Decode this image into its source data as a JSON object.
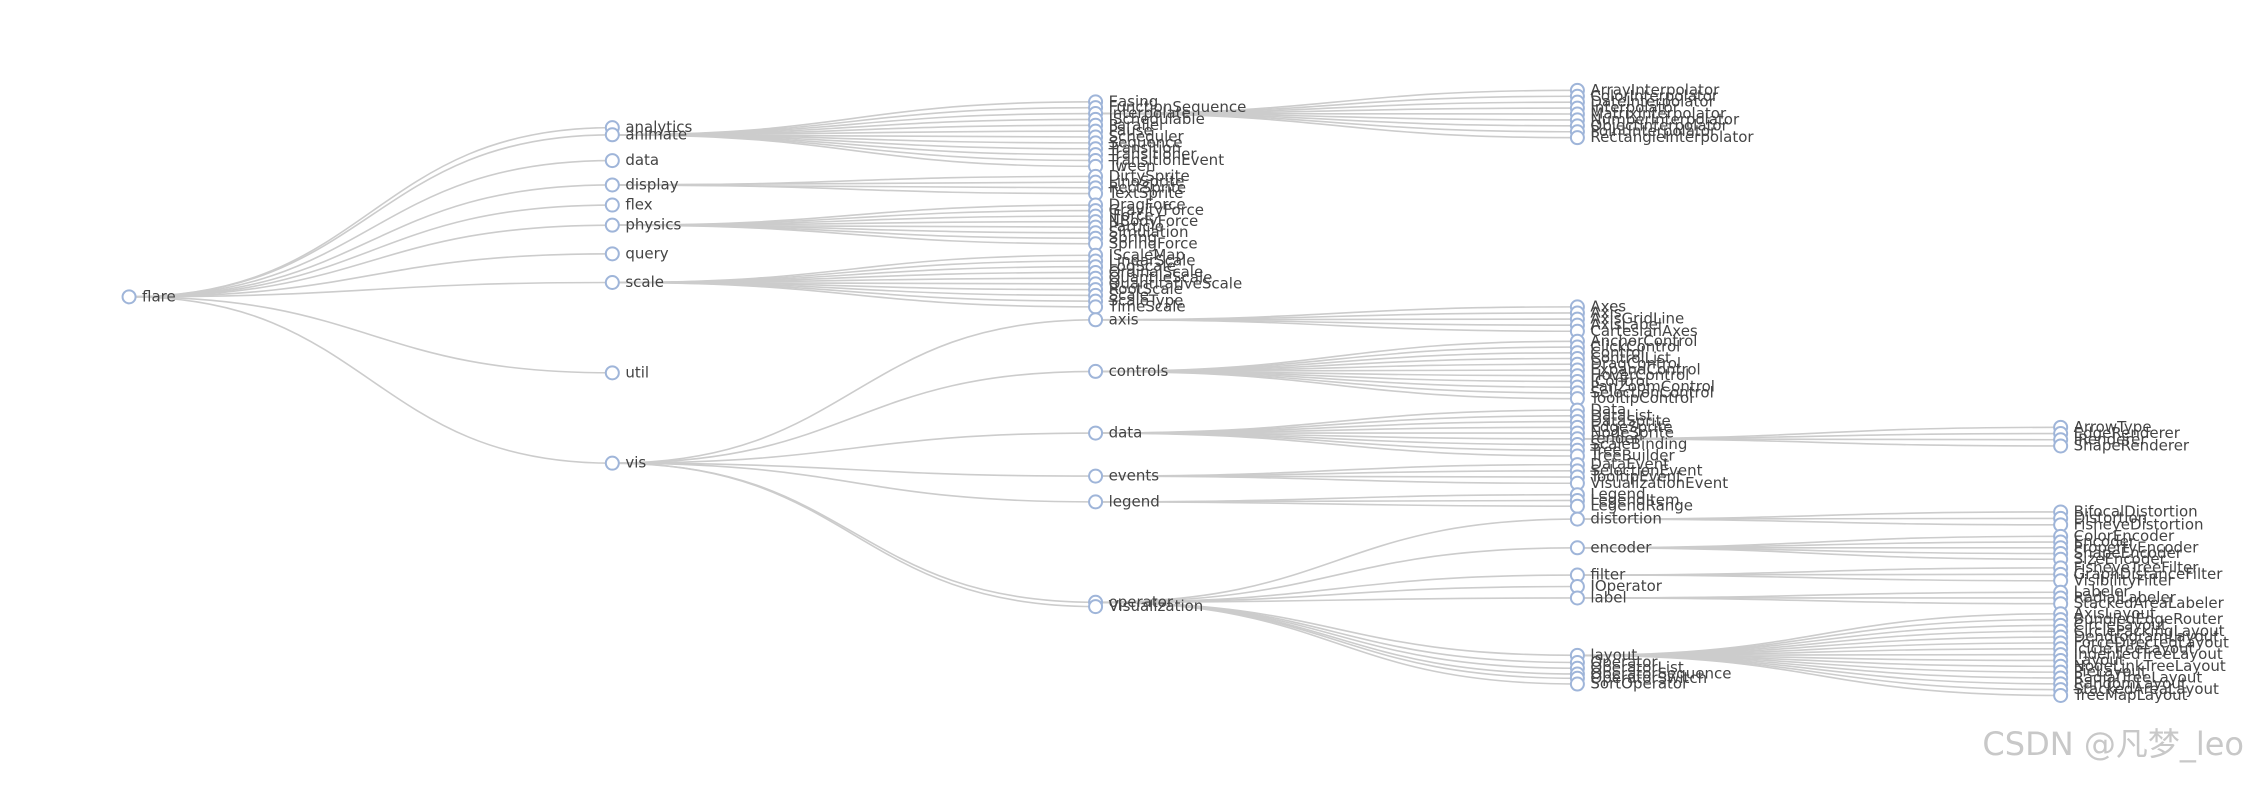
{
  "tree": {
    "name": "flare",
    "children": [
      {
        "name": "analytics"
      },
      {
        "name": "animate",
        "children": [
          {
            "name": "Easing"
          },
          {
            "name": "FunctionSequence"
          },
          {
            "name": "interpolate",
            "children": [
              {
                "name": "ArrayInterpolator"
              },
              {
                "name": "ColorInterpolator"
              },
              {
                "name": "DateInterpolator"
              },
              {
                "name": "Interpolator"
              },
              {
                "name": "MatrixInterpolator"
              },
              {
                "name": "NumberInterpolator"
              },
              {
                "name": "ObjectInterpolator"
              },
              {
                "name": "PointInterpolator"
              },
              {
                "name": "RectangleInterpolator"
              }
            ]
          },
          {
            "name": "ISchedulable"
          },
          {
            "name": "Parallel"
          },
          {
            "name": "Pause"
          },
          {
            "name": "Scheduler"
          },
          {
            "name": "Sequence"
          },
          {
            "name": "Transition"
          },
          {
            "name": "Transitioner"
          },
          {
            "name": "TransitionEvent"
          },
          {
            "name": "Tween"
          }
        ]
      },
      {
        "name": "data"
      },
      {
        "name": "display",
        "children": [
          {
            "name": "DirtySprite"
          },
          {
            "name": "LineSprite"
          },
          {
            "name": "RectSprite"
          },
          {
            "name": "TextSprite"
          }
        ]
      },
      {
        "name": "flex"
      },
      {
        "name": "physics",
        "children": [
          {
            "name": "DragForce"
          },
          {
            "name": "GravityForce"
          },
          {
            "name": "IForce"
          },
          {
            "name": "NBodyForce"
          },
          {
            "name": "Particle"
          },
          {
            "name": "Simulation"
          },
          {
            "name": "Spring"
          },
          {
            "name": "SpringForce"
          }
        ]
      },
      {
        "name": "query"
      },
      {
        "name": "scale",
        "children": [
          {
            "name": "IScaleMap"
          },
          {
            "name": "LinearScale"
          },
          {
            "name": "LogScale"
          },
          {
            "name": "OrdinalScale"
          },
          {
            "name": "QuantileScale"
          },
          {
            "name": "QuantitativeScale"
          },
          {
            "name": "RootScale"
          },
          {
            "name": "Scale"
          },
          {
            "name": "ScaleType"
          },
          {
            "name": "TimeScale"
          }
        ]
      },
      {
        "name": "util"
      },
      {
        "name": "vis",
        "children": [
          {
            "name": "axis",
            "children": [
              {
                "name": "Axes"
              },
              {
                "name": "Axis"
              },
              {
                "name": "AxisGridLine"
              },
              {
                "name": "AxisLabel"
              },
              {
                "name": "CartesianAxes"
              }
            ]
          },
          {
            "name": "controls",
            "children": [
              {
                "name": "AnchorControl"
              },
              {
                "name": "ClickControl"
              },
              {
                "name": "Control"
              },
              {
                "name": "ControlList"
              },
              {
                "name": "DragControl"
              },
              {
                "name": "ExpandControl"
              },
              {
                "name": "HoverControl"
              },
              {
                "name": "IControl"
              },
              {
                "name": "PanZoomControl"
              },
              {
                "name": "SelectionControl"
              },
              {
                "name": "TooltipControl"
              }
            ]
          },
          {
            "name": "data",
            "children": [
              {
                "name": "Data"
              },
              {
                "name": "DataList"
              },
              {
                "name": "DataSprite"
              },
              {
                "name": "EdgeSprite"
              },
              {
                "name": "NodeSprite"
              },
              {
                "name": "render",
                "children": [
                  {
                    "name": "ArrowType"
                  },
                  {
                    "name": "EdgeRenderer"
                  },
                  {
                    "name": "IRenderer"
                  },
                  {
                    "name": "ShapeRenderer"
                  }
                ]
              },
              {
                "name": "ScaleBinding"
              },
              {
                "name": "Tree"
              },
              {
                "name": "TreeBuilder"
              }
            ]
          },
          {
            "name": "events",
            "children": [
              {
                "name": "DataEvent"
              },
              {
                "name": "SelectionEvent"
              },
              {
                "name": "TooltipEvent"
              },
              {
                "name": "VisualizationEvent"
              }
            ]
          },
          {
            "name": "legend",
            "children": [
              {
                "name": "Legend"
              },
              {
                "name": "LegendItem"
              },
              {
                "name": "LegendRange"
              }
            ]
          },
          {
            "name": "operator",
            "children": [
              {
                "name": "distortion",
                "children": [
                  {
                    "name": "BifocalDistortion"
                  },
                  {
                    "name": "Distortion"
                  },
                  {
                    "name": "FisheyeDistortion"
                  }
                ]
              },
              {
                "name": "encoder",
                "children": [
                  {
                    "name": "ColorEncoder"
                  },
                  {
                    "name": "Encoder"
                  },
                  {
                    "name": "PropertyEncoder"
                  },
                  {
                    "name": "ShapeEncoder"
                  },
                  {
                    "name": "SizeEncoder"
                  }
                ]
              },
              {
                "name": "filter",
                "children": [
                  {
                    "name": "FisheyeTreeFilter"
                  },
                  {
                    "name": "GraphDistanceFilter"
                  },
                  {
                    "name": "VisibilityFilter"
                  }
                ]
              },
              {
                "name": "IOperator"
              },
              {
                "name": "label",
                "children": [
                  {
                    "name": "Labeler"
                  },
                  {
                    "name": "RadialLabeler"
                  },
                  {
                    "name": "StackedAreaLabeler"
                  }
                ]
              },
              {
                "name": "layout",
                "children": [
                  {
                    "name": "AxisLayout"
                  },
                  {
                    "name": "BundledEdgeRouter"
                  },
                  {
                    "name": "CircleLayout"
                  },
                  {
                    "name": "CirclePackingLayout"
                  },
                  {
                    "name": "DendrogramLayout"
                  },
                  {
                    "name": "ForceDirectedLayout"
                  },
                  {
                    "name": "IcicleTreeLayout"
                  },
                  {
                    "name": "IndentedTreeLayout"
                  },
                  {
                    "name": "Layout"
                  },
                  {
                    "name": "NodeLinkTreeLayout"
                  },
                  {
                    "name": "PieLayout"
                  },
                  {
                    "name": "RadialTreeLayout"
                  },
                  {
                    "name": "RandomLayout"
                  },
                  {
                    "name": "StackedAreaLayout"
                  },
                  {
                    "name": "TreeMapLayout"
                  }
                ]
              },
              {
                "name": "Operator"
              },
              {
                "name": "OperatorList"
              },
              {
                "name": "OperatorSequence"
              },
              {
                "name": "OperatorSwitch"
              },
              {
                "name": "SortOperator"
              }
            ]
          },
          {
            "name": "Visualization"
          }
        ]
      }
    ]
  },
  "watermark": "CSDN @凡梦_leo"
}
